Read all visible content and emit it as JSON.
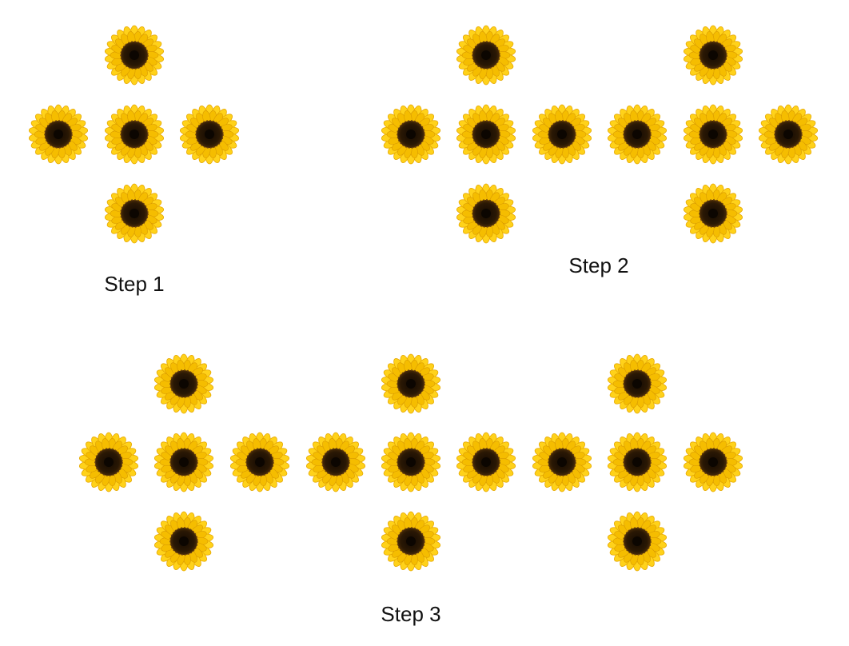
{
  "steps": [
    {
      "label": "Step 1",
      "flower_count": 5
    },
    {
      "label": "Step 2",
      "flower_count": 10
    },
    {
      "label": "Step 3",
      "flower_count": 15
    }
  ],
  "icons": {
    "flower": "sunflower-icon"
  },
  "colors": {
    "background": "#ffffff",
    "petal_light": "#ffd21a",
    "petal_dark": "#f0b400",
    "center_outer": "#3a2206",
    "center_inner": "#140a02",
    "label_text": "#111111"
  }
}
